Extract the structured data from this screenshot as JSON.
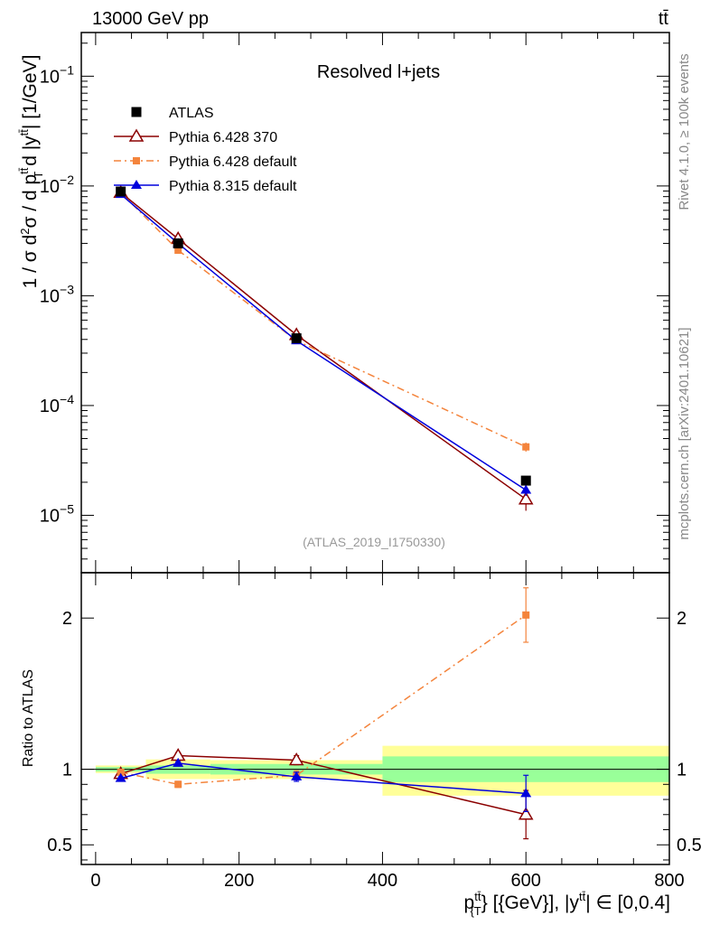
{
  "header": {
    "energy_label": "13000 GeV pp",
    "process_label": "tt̄"
  },
  "side_labels": {
    "rivet": "Rivet 4.1.0, ≥ 100k events",
    "mcplots": "mcplots.cern.ch [arXiv:2401.10621]"
  },
  "colors": {
    "atlas": "#000000",
    "py6_370": "#8b0000",
    "py6_default": "#f4843c",
    "py8": "#0000dd",
    "band_inner": "#99ff99",
    "band_outer": "#ffff99"
  },
  "chart_data": [
    {
      "type": "line",
      "panel": "main",
      "title": "Resolved l+jets",
      "analysis_label": "(ATLAS_2019_I1750330)",
      "ylabel": "1 / σ d²σ / d p_T^{tt̄} d |y^{tt̄}| [1/GeV]",
      "yscale": "log",
      "ylim": [
        3e-06,
        0.25
      ],
      "xlim": [
        -20,
        800
      ],
      "yticks": [
        {
          "value": 0.1,
          "base": "10",
          "exp": "−1"
        },
        {
          "value": 0.01,
          "base": "10",
          "exp": "−2"
        },
        {
          "value": 0.001,
          "base": "10",
          "exp": "−3"
        },
        {
          "value": 0.0001,
          "base": "10",
          "exp": "−4"
        },
        {
          "value": 1e-05,
          "base": "10",
          "exp": "−5"
        }
      ],
      "legend_position": "top-left",
      "series": [
        {
          "name": "ATLAS",
          "style": "data",
          "x": [
            35,
            115,
            280,
            600
          ],
          "y": [
            0.0089,
            0.003,
            0.00041,
            2.07e-05
          ]
        },
        {
          "name": "Pythia 6.428 370",
          "style": "py6_370",
          "x": [
            35,
            115,
            280,
            600
          ],
          "y": [
            0.0087,
            0.0033,
            0.00044,
            1.4e-05
          ],
          "err_low": [
            0.0003,
            0.0001,
            2e-05,
            3e-06
          ],
          "err_high": [
            0.0003,
            0.0001,
            2e-05,
            3e-06
          ]
        },
        {
          "name": "Pythia 6.428 default",
          "style": "py6_default",
          "x": [
            35,
            115,
            280,
            600
          ],
          "y": [
            0.0087,
            0.0026,
            0.00039,
            4.2e-05
          ],
          "err_low": [
            0.0002,
            0.0001,
            2e-05,
            4e-06
          ],
          "err_high": [
            0.0002,
            0.0001,
            2e-05,
            4e-06
          ]
        },
        {
          "name": "Pythia 8.315 default",
          "style": "py8",
          "x": [
            35,
            115,
            280,
            600
          ],
          "y": [
            0.0084,
            0.003,
            0.00039,
            1.7e-05
          ],
          "err_low": [
            0.0002,
            0.0001,
            1e-05,
            2e-06
          ],
          "err_high": [
            0.0002,
            0.0001,
            1e-05,
            2e-06
          ]
        }
      ]
    },
    {
      "type": "line",
      "panel": "ratio",
      "ylabel": "Ratio to ATLAS",
      "xlabel": "p_T^{tt̄} [{GeV}], |y^{tt̄}| ∈ [0,0.4]",
      "ylim": [
        0.37,
        2.3
      ],
      "xlim": [
        -20,
        800
      ],
      "xticks": [
        0,
        200,
        400,
        600,
        800
      ],
      "yticks": [
        0.5,
        1,
        2
      ],
      "bands": [
        {
          "x0": 0,
          "x1": 70,
          "inner": [
            0.985,
            1.015
          ],
          "outer": [
            0.975,
            1.025
          ]
        },
        {
          "x0": 70,
          "x1": 160,
          "inner": [
            0.97,
            1.025
          ],
          "outer": [
            0.935,
            1.065
          ]
        },
        {
          "x0": 160,
          "x1": 400,
          "inner": [
            0.965,
            1.035
          ],
          "outer": [
            0.935,
            1.06
          ]
        },
        {
          "x0": 400,
          "x1": 800,
          "inner": [
            0.915,
            1.085
          ],
          "outer": [
            0.825,
            1.155
          ]
        }
      ],
      "series": [
        {
          "name": "Pythia 6.428 370",
          "style": "py6_370",
          "x": [
            35,
            115,
            280,
            600
          ],
          "y": [
            0.97,
            1.09,
            1.06,
            0.7
          ],
          "err_low": [
            0.02,
            0.02,
            0.03,
            0.16
          ],
          "err_high": [
            0.02,
            0.02,
            0.03,
            0.16
          ]
        },
        {
          "name": "Pythia 6.428 default",
          "style": "py6_default",
          "x": [
            35,
            115,
            280,
            600
          ],
          "y": [
            0.98,
            0.9,
            0.96,
            2.02
          ],
          "err_low": [
            0.02,
            0.02,
            0.03,
            0.18
          ],
          "err_high": [
            0.02,
            0.02,
            0.03,
            0.18
          ]
        },
        {
          "name": "Pythia 8.315 default",
          "style": "py8",
          "x": [
            35,
            115,
            280,
            600
          ],
          "y": [
            0.94,
            1.04,
            0.95,
            0.84
          ],
          "err_low": [
            0.01,
            0.01,
            0.03,
            0.12
          ],
          "err_high": [
            0.01,
            0.01,
            0.03,
            0.12
          ]
        }
      ]
    }
  ]
}
